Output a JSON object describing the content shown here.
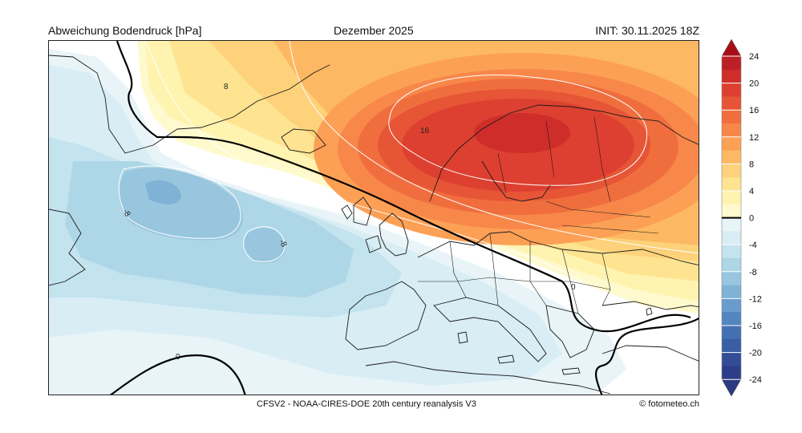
{
  "header": {
    "variable": "Abweichung Bodendruck [hPa]",
    "period": "Dezember 2025",
    "init": "INIT: 30.11.2025 18Z"
  },
  "footer": {
    "source": "CFSV2 - NOAA-CIRES-DOE 20th century reanalysis V3",
    "credit": "© fotometeo.ch"
  },
  "map": {
    "region": "North Atlantic and Europe",
    "contour_labels": [
      "8",
      "16",
      "-8",
      "-8",
      "0",
      "0"
    ]
  },
  "colorbar": {
    "ticks": [
      "24",
      "20",
      "16",
      "12",
      "8",
      "4",
      "0",
      "-4",
      "-8",
      "-12",
      "-16",
      "-20",
      "-24"
    ],
    "unit": "hPa",
    "colors": {
      "pos": [
        "#fffacd",
        "#fff3b0",
        "#fee391",
        "#fdd27a",
        "#fdb863",
        "#fca055",
        "#f8874a",
        "#f06e3e",
        "#e65536",
        "#dd4030",
        "#cf2d2a",
        "#bd1f27"
      ],
      "neg": [
        "#e8f4f8",
        "#d8edf4",
        "#c3e3ee",
        "#add6e6",
        "#98c6de",
        "#80b2d6",
        "#699ccc",
        "#5385c0",
        "#4470b2",
        "#3a5ea4",
        "#334c96",
        "#2e3d88"
      ],
      "top_arrow": "#a50f15",
      "bottom_arrow": "#2c3a80"
    }
  }
}
